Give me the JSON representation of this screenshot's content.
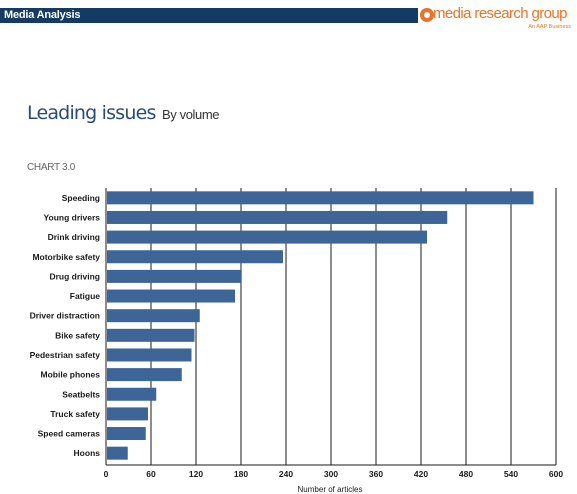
{
  "header": {
    "title": "Media Analysis",
    "brand": "media research group",
    "tagline": "An AAP Business"
  },
  "page": {
    "heading": "Leading issues",
    "subheading": "By volume",
    "chart_label": "CHART 3.0"
  },
  "colors": {
    "bar": "#3d6598",
    "header_bar": "#153a66",
    "brand_orange": "#e8742a"
  },
  "chart_data": {
    "type": "bar",
    "orientation": "horizontal",
    "title": "",
    "xlabel": "Number of articles",
    "ylabel": "",
    "xlim": [
      0,
      600
    ],
    "xticks": [
      0,
      60,
      120,
      180,
      240,
      300,
      360,
      420,
      480,
      540,
      600
    ],
    "grid": true,
    "categories": [
      "Speeding",
      "Young drivers",
      "Drink driving",
      "Motorbike safety",
      "Drug driving",
      "Fatigue",
      "Driver distraction",
      "Bike safety",
      "Pedestrian safety",
      "Mobile phones",
      "Seatbelts",
      "Truck safety",
      "Speed cameras",
      "Hoons"
    ],
    "values": [
      570,
      455,
      428,
      236,
      180,
      172,
      125,
      118,
      114,
      101,
      67,
      56,
      53,
      29
    ]
  }
}
